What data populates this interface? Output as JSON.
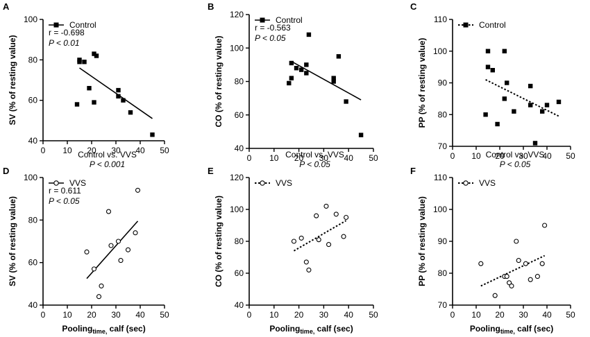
{
  "figure": {
    "shared_xlabel_main": "Pooling",
    "shared_xlabel_sub": "time,",
    "shared_xlabel_tail": " calf (sec)"
  },
  "chart_data": [
    {
      "panel": "A",
      "type": "scatter",
      "group": "Control",
      "marker": "filled-square",
      "ylabel": "SV (% of resting value)",
      "xlim": [
        0,
        50
      ],
      "ylim": [
        40,
        100
      ],
      "xticks": [
        0,
        10,
        20,
        30,
        40,
        50
      ],
      "yticks": [
        40,
        60,
        80,
        100
      ],
      "stats": [
        "r = -0.698",
        "P < 0.01"
      ],
      "comparison": [
        "Control vs. VVS",
        "P < 0.001"
      ],
      "points": [
        [
          14,
          58
        ],
        [
          15,
          80
        ],
        [
          15,
          79
        ],
        [
          17,
          79
        ],
        [
          19,
          66
        ],
        [
          21,
          59
        ],
        [
          21,
          83
        ],
        [
          22,
          82
        ],
        [
          31,
          65
        ],
        [
          31,
          62
        ],
        [
          33,
          60
        ],
        [
          36,
          54
        ],
        [
          45,
          43
        ]
      ],
      "fit": {
        "style": "solid",
        "from": [
          15,
          76
        ],
        "to": [
          45,
          51
        ]
      }
    },
    {
      "panel": "B",
      "type": "scatter",
      "group": "Control",
      "marker": "filled-square",
      "ylabel": "CO (% of resting value)",
      "xlim": [
        0,
        50
      ],
      "ylim": [
        40,
        120
      ],
      "xticks": [
        0,
        10,
        20,
        30,
        40,
        50
      ],
      "yticks": [
        40,
        60,
        80,
        100,
        120
      ],
      "stats": [
        "r = -0.563",
        "P < 0.05"
      ],
      "comparison": [
        "Control vs. VVS",
        "P < 0.05"
      ],
      "points": [
        [
          16,
          79
        ],
        [
          17,
          82
        ],
        [
          17,
          91
        ],
        [
          19,
          88
        ],
        [
          21,
          87
        ],
        [
          23,
          85
        ],
        [
          23,
          90
        ],
        [
          24,
          108
        ],
        [
          34,
          82
        ],
        [
          34,
          80
        ],
        [
          36,
          95
        ],
        [
          39,
          68
        ],
        [
          45,
          48
        ]
      ],
      "fit": {
        "style": "solid",
        "from": [
          17,
          92
        ],
        "to": [
          45,
          69
        ]
      }
    },
    {
      "panel": "C",
      "type": "scatter",
      "group": "Control",
      "marker": "filled-square",
      "ylabel": "PP (% of resting value)",
      "xlim": [
        0,
        50
      ],
      "ylim": [
        70,
        110
      ],
      "xticks": [
        0,
        10,
        20,
        30,
        40,
        50
      ],
      "yticks": [
        70,
        80,
        90,
        100,
        110
      ],
      "stats": [],
      "comparison": [
        "Control vs. VVS",
        "P < 0.05"
      ],
      "points": [
        [
          14,
          80
        ],
        [
          15,
          100
        ],
        [
          15,
          95
        ],
        [
          17,
          94
        ],
        [
          19,
          77
        ],
        [
          22,
          100
        ],
        [
          22,
          85
        ],
        [
          23,
          90
        ],
        [
          26,
          81
        ],
        [
          33,
          89
        ],
        [
          33,
          83
        ],
        [
          35,
          71
        ],
        [
          38,
          81
        ],
        [
          40,
          83
        ],
        [
          45,
          84
        ]
      ],
      "fit": {
        "style": "dotted",
        "from": [
          14,
          91
        ],
        "to": [
          45,
          79.5
        ]
      }
    },
    {
      "panel": "D",
      "type": "scatter",
      "group": "VVS",
      "marker": "open-circle",
      "ylabel": "SV (% of resting value)",
      "xlim": [
        0,
        50
      ],
      "ylim": [
        40,
        100
      ],
      "xticks": [
        0,
        10,
        20,
        30,
        40,
        50
      ],
      "yticks": [
        40,
        60,
        80,
        100
      ],
      "stats": [
        "r = 0.611",
        "P < 0.05"
      ],
      "points": [
        [
          18,
          65
        ],
        [
          21,
          57
        ],
        [
          23,
          44
        ],
        [
          24,
          49
        ],
        [
          27,
          84
        ],
        [
          28,
          68
        ],
        [
          31,
          70
        ],
        [
          32,
          61
        ],
        [
          35,
          66
        ],
        [
          38,
          74
        ],
        [
          39,
          94
        ]
      ],
      "fit": {
        "style": "solid",
        "from": [
          18,
          52.5
        ],
        "to": [
          39,
          79.5
        ]
      }
    },
    {
      "panel": "E",
      "type": "scatter",
      "group": "VVS",
      "marker": "open-circle",
      "ylabel": "CO (% of resting value)",
      "xlim": [
        0,
        50
      ],
      "ylim": [
        40,
        120
      ],
      "xticks": [
        0,
        10,
        20,
        30,
        40,
        50
      ],
      "yticks": [
        40,
        60,
        80,
        100,
        120
      ],
      "stats": [],
      "points": [
        [
          18,
          80
        ],
        [
          21,
          82
        ],
        [
          23,
          67
        ],
        [
          24,
          62
        ],
        [
          27,
          96
        ],
        [
          28,
          81
        ],
        [
          31,
          102
        ],
        [
          32,
          78
        ],
        [
          35,
          97
        ],
        [
          38,
          83
        ],
        [
          39,
          95
        ]
      ],
      "fit": {
        "style": "dotted",
        "from": [
          18,
          74
        ],
        "to": [
          39,
          93
        ]
      }
    },
    {
      "panel": "F",
      "type": "scatter",
      "group": "VVS",
      "marker": "open-circle",
      "ylabel": "PP (% of resting value)",
      "xlim": [
        0,
        50
      ],
      "ylim": [
        70,
        110
      ],
      "xticks": [
        0,
        10,
        20,
        30,
        40,
        50
      ],
      "yticks": [
        70,
        80,
        90,
        100,
        110
      ],
      "stats": [],
      "points": [
        [
          12,
          83
        ],
        [
          18,
          73
        ],
        [
          22,
          79
        ],
        [
          23,
          79
        ],
        [
          24,
          77
        ],
        [
          25,
          76
        ],
        [
          27,
          90
        ],
        [
          28,
          84
        ],
        [
          31,
          83
        ],
        [
          33,
          78
        ],
        [
          36,
          79
        ],
        [
          38,
          83
        ],
        [
          39,
          95
        ]
      ],
      "fit": {
        "style": "dotted",
        "from": [
          12,
          76
        ],
        "to": [
          39,
          85.5
        ]
      }
    }
  ]
}
